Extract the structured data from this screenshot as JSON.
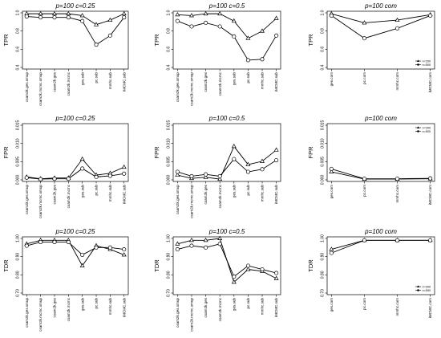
{
  "chart_data": [
    {
      "type": "line",
      "title": "p=100  c=0.25",
      "ylabel": "TPR",
      "ylim": [
        0.4,
        1.0
      ],
      "yticks": [
        "0.4",
        "0.6",
        "0.8",
        "1.0"
      ],
      "categories": [
        "csam2k.ges.smup",
        "csam2k.mcmc.smup",
        "csam2k.ges",
        "csam2k.mcmc",
        "ges.sub",
        "pc.sub",
        "mmhc.sub",
        "iMCMC.sub"
      ],
      "series": [
        {
          "marker": "triangle",
          "values": [
            0.99,
            0.99,
            0.99,
            0.99,
            0.97,
            0.87,
            0.92,
            0.99
          ]
        },
        {
          "marker": "circle",
          "values": [
            0.96,
            0.95,
            0.95,
            0.95,
            0.91,
            0.65,
            0.75,
            0.95
          ]
        }
      ]
    },
    {
      "type": "line",
      "title": "p=100  c=0.5",
      "ylabel": "TPR",
      "ylim": [
        0.4,
        1.0
      ],
      "yticks": [
        "0.4",
        "0.6",
        "0.8",
        "1.0"
      ],
      "categories": [
        "csam2k.ges.smup",
        "csam2k.mcmc.smup",
        "csam2k.ges",
        "csam2k.mcmc",
        "ges.sub",
        "pc.sub",
        "mmhc.sub",
        "iMCMC.sub"
      ],
      "series": [
        {
          "marker": "triangle",
          "values": [
            0.98,
            0.97,
            0.99,
            0.99,
            0.91,
            0.72,
            0.8,
            0.94
          ]
        },
        {
          "marker": "circle",
          "values": [
            0.91,
            0.85,
            0.89,
            0.85,
            0.74,
            0.48,
            0.49,
            0.75
          ]
        }
      ]
    },
    {
      "type": "line",
      "title": "p=100  com",
      "ylabel": "TPR",
      "ylim": [
        0.4,
        1.0
      ],
      "yticks": [
        "0.4",
        "0.6",
        "0.8",
        "1.0"
      ],
      "categories": [
        "ges.com",
        "pc.com",
        "mmhc.com",
        "iMCMC.com"
      ],
      "legend": [
        "n=200",
        "n=500"
      ],
      "series": [
        {
          "marker": "triangle",
          "values": [
            0.99,
            0.89,
            0.92,
            0.98
          ]
        },
        {
          "marker": "circle",
          "values": [
            0.97,
            0.72,
            0.83,
            0.97
          ]
        }
      ]
    },
    {
      "type": "line",
      "title": "p=100  c=0.25",
      "ylabel": "FPR",
      "ylim": [
        0,
        0.015
      ],
      "yticks": [
        "0.000",
        "0.005",
        "0.010",
        "0.015"
      ],
      "categories": [
        "csam2k.ges.smup",
        "csam2k.mcmc.smup",
        "csam2k.ges",
        "csam2k.mcmc",
        "ges.sub",
        "pc.sub",
        "mmhc.sub",
        "iMCMC.sub"
      ],
      "series": [
        {
          "marker": "triangle",
          "values": [
            0.0008,
            0.0003,
            0.0005,
            0.0005,
            0.0057,
            0.0013,
            0.0018,
            0.0035
          ]
        },
        {
          "marker": "circle",
          "values": [
            0.0006,
            0.0002,
            0.0003,
            0.0003,
            0.0031,
            0.0008,
            0.0011,
            0.0017
          ]
        }
      ]
    },
    {
      "type": "line",
      "title": "p=100  c=0.5",
      "ylabel": "FPR",
      "ylim": [
        0,
        0.015
      ],
      "yticks": [
        "0.000",
        "0.005",
        "0.010",
        "0.015"
      ],
      "categories": [
        "csam2k.ges.smup",
        "csam2k.mcmc.smup",
        "csam2k.ges",
        "csam2k.mcmc",
        "ges.sub",
        "pc.sub",
        "mmhc.sub",
        "iMCMC.sub"
      ],
      "series": [
        {
          "marker": "triangle",
          "values": [
            0.0013,
            0.0004,
            0.0007,
            0.0002,
            0.0092,
            0.0042,
            0.0051,
            0.0082
          ]
        },
        {
          "marker": "circle",
          "values": [
            0.0022,
            0.001,
            0.0015,
            0.001,
            0.0057,
            0.0022,
            0.0029,
            0.0054
          ]
        }
      ]
    },
    {
      "type": "line",
      "title": "p=100  com",
      "ylabel": "FPR",
      "ylim": [
        0,
        0.015
      ],
      "yticks": [
        "0.000",
        "0.005",
        "0.010",
        "0.015"
      ],
      "categories": [
        "ges.com",
        "pc.com",
        "mmhc.com",
        "iMCMC.com"
      ],
      "legend": [
        "n=200",
        "n=500"
      ],
      "series": [
        {
          "marker": "triangle",
          "values": [
            0.0022,
            0.0002,
            0.0002,
            0.0003
          ]
        },
        {
          "marker": "circle",
          "values": [
            0.003,
            0.0003,
            0.0003,
            0.0004
          ]
        }
      ]
    },
    {
      "type": "line",
      "title": "p=100  c=0.25",
      "ylabel": "TDR",
      "ylim": [
        0.7,
        1.0
      ],
      "yticks": [
        "0.70",
        "0.80",
        "0.90",
        "1.00"
      ],
      "categories": [
        "csam2k.ges.smup",
        "csam2k.mcmc.smup",
        "csam2k.ges",
        "csam2k.mcmc",
        "ges.sub",
        "pc.sub",
        "mmhc.sub",
        "iMCMC.sub"
      ],
      "series": [
        {
          "marker": "triangle",
          "values": [
            0.97,
            0.99,
            0.99,
            0.99,
            0.85,
            0.96,
            0.94,
            0.91
          ]
        },
        {
          "marker": "circle",
          "values": [
            0.96,
            0.98,
            0.98,
            0.98,
            0.91,
            0.95,
            0.95,
            0.94
          ]
        }
      ]
    },
    {
      "type": "line",
      "title": "p=100  c=0.5",
      "ylabel": "TDR",
      "ylim": [
        0.7,
        1.0
      ],
      "yticks": [
        "0.70",
        "0.80",
        "0.90",
        "1.00"
      ],
      "categories": [
        "csam2k.ges.smup",
        "csam2k.mcmc.smup",
        "csam2k.ges",
        "csam2k.mcmc",
        "ges.sub",
        "pc.sub",
        "mmhc.sub",
        "iMCMC.sub"
      ],
      "series": [
        {
          "marker": "triangle",
          "values": [
            0.97,
            0.99,
            0.99,
            1.0,
            0.76,
            0.83,
            0.82,
            0.78
          ]
        },
        {
          "marker": "circle",
          "values": [
            0.94,
            0.96,
            0.95,
            0.97,
            0.79,
            0.85,
            0.83,
            0.81
          ]
        }
      ]
    },
    {
      "type": "line",
      "title": "p=100  com",
      "ylabel": "TDR",
      "ylim": [
        0.7,
        1.0
      ],
      "yticks": [
        "0.70",
        "0.80",
        "0.90",
        "1.00"
      ],
      "categories": [
        "ges.com",
        "pc.com",
        "mmhc.com",
        "iMCMC.com"
      ],
      "legend": [
        "n=200",
        "n=500"
      ],
      "series": [
        {
          "marker": "triangle",
          "values": [
            0.94,
            0.99,
            0.99,
            0.99
          ]
        },
        {
          "marker": "circle",
          "values": [
            0.92,
            0.99,
            0.99,
            0.99
          ]
        }
      ]
    }
  ]
}
